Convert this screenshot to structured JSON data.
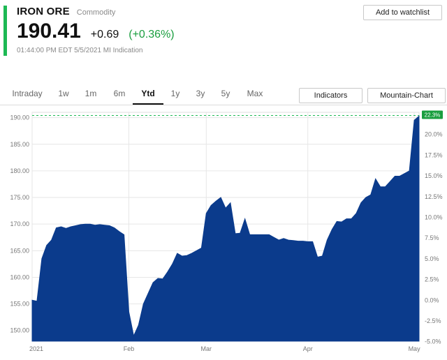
{
  "header": {
    "title": "IRON ORE",
    "subtitle": "Commodity",
    "price": "190.41",
    "change": "+0.69",
    "change_pct": "(+0.36%)",
    "timestamp": "01:44:00 PM EDT 5/5/2021 MI Indication",
    "watchlist_label": "Add to watchlist",
    "accent_color": "#1db954",
    "positive_color": "#1a9e3f"
  },
  "toolbar": {
    "tabs": [
      {
        "label": "Intraday"
      },
      {
        "label": "1w"
      },
      {
        "label": "1m"
      },
      {
        "label": "6m"
      },
      {
        "label": "Ytd",
        "active": true
      },
      {
        "label": "1y"
      },
      {
        "label": "3y"
      },
      {
        "label": "5y"
      },
      {
        "label": "Max"
      }
    ],
    "indicators_label": "Indicators",
    "chart_type_label": "Mountain-Chart"
  },
  "chart_data": {
    "type": "area",
    "fill_color": "#0b3b8c",
    "x_labels": [
      "2021",
      "Feb",
      "Mar",
      "Apr",
      "May"
    ],
    "y_left_ticks": [
      "190.00",
      "185.00",
      "180.00",
      "175.00",
      "170.00",
      "165.00",
      "160.00",
      "155.00",
      "150.00"
    ],
    "y_right_ticks": [
      "20.0%",
      "17.5%",
      "15.0%",
      "12.5%",
      "10.0%",
      "7.5%",
      "5.0%",
      "2.5%",
      "0.0%",
      "-2.5%",
      "-5.0%"
    ],
    "ylim": [
      148,
      191
    ],
    "reference_value": 190.41,
    "badge_label": "22.3%",
    "grid": true,
    "values": [
      155.7,
      155.5,
      163.5,
      166.0,
      167.0,
      169.3,
      169.5,
      169.2,
      169.5,
      169.7,
      169.9,
      170.0,
      170.0,
      169.8,
      169.9,
      169.8,
      169.7,
      169.3,
      168.6,
      168.0,
      153.5,
      149.0,
      151.0,
      155.0,
      157.0,
      159.0,
      159.8,
      159.7,
      161.0,
      162.5,
      164.5,
      164.0,
      164.1,
      164.5,
      165.0,
      165.5,
      172.0,
      173.5,
      174.3,
      175.0,
      173.0,
      174.0,
      168.2,
      168.3,
      171.0,
      168.0,
      168.0,
      168.0,
      168.0,
      168.0,
      167.5,
      167.0,
      167.3,
      167.0,
      166.9,
      166.8,
      166.8,
      166.7,
      166.7,
      163.8,
      164.0,
      167.0,
      169.0,
      170.5,
      170.4,
      171.0,
      171.0,
      172.0,
      174.0,
      175.0,
      175.5,
      178.5,
      177.0,
      177.0,
      178.0,
      179.0,
      179.0,
      179.5,
      180.0,
      189.5,
      190.3
    ],
    "x_label_indices": [
      0,
      20,
      36,
      57,
      79
    ]
  }
}
